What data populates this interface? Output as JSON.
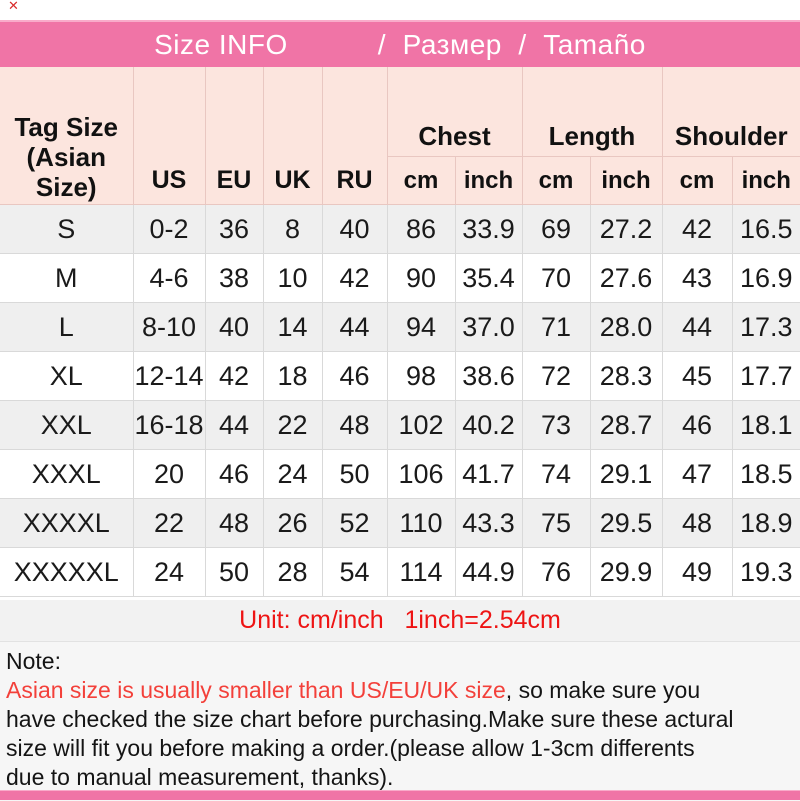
{
  "colors": {
    "accent_pink": "#f074a6",
    "accent_pink_light": "#f9abca",
    "table_header_bg": "#fce5de",
    "table_header_border": "#e9c7c1",
    "row_alt_bg": "#efefef",
    "row_border": "#d9d9d9",
    "unit_row_bg": "#f2f2f2",
    "note_bg": "#f6f6f6",
    "red_text": "#f3403a",
    "unit_red": "#ee1414",
    "title_text": "#ffffff",
    "body_text": "#1a1a1a"
  },
  "icons": {
    "red_cross": "✕"
  },
  "title_bar": {
    "left": "Size INFO",
    "right": "/  Размер  /  Tamaño"
  },
  "table": {
    "corner_header": "Tag Size\n(Asian\nSize)",
    "size_systems": [
      "US",
      "EU",
      "UK",
      "RU"
    ],
    "measure_groups": [
      "Chest",
      "Length",
      "Shoulder"
    ],
    "unit_headers": [
      "cm",
      "inch",
      "cm",
      "inch",
      "cm",
      "inch"
    ]
  },
  "chart_data": {
    "type": "table",
    "title": "Size INFO / Размер / Tamaño",
    "column_keys": [
      "tag",
      "us",
      "eu",
      "uk",
      "ru",
      "chest_cm",
      "chest_inch",
      "length_cm",
      "length_inch",
      "shoulder_cm",
      "shoulder_inch"
    ],
    "columns": [
      "Tag Size (Asian Size)",
      "US",
      "EU",
      "UK",
      "RU",
      "Chest cm",
      "Chest inch",
      "Length cm",
      "Length inch",
      "Shoulder cm",
      "Shoulder inch"
    ],
    "rows": [
      [
        "S",
        "0-2",
        "36",
        "8",
        "40",
        "86",
        "33.9",
        "69",
        "27.2",
        "42",
        "16.5"
      ],
      [
        "M",
        "4-6",
        "38",
        "10",
        "42",
        "90",
        "35.4",
        "70",
        "27.6",
        "43",
        "16.9"
      ],
      [
        "L",
        "8-10",
        "40",
        "14",
        "44",
        "94",
        "37.0",
        "71",
        "28.0",
        "44",
        "17.3"
      ],
      [
        "XL",
        "12-14",
        "42",
        "18",
        "46",
        "98",
        "38.6",
        "72",
        "28.3",
        "45",
        "17.7"
      ],
      [
        "XXL",
        "16-18",
        "44",
        "22",
        "48",
        "102",
        "40.2",
        "73",
        "28.7",
        "46",
        "18.1"
      ],
      [
        "XXXL",
        "20",
        "46",
        "24",
        "50",
        "106",
        "41.7",
        "74",
        "29.1",
        "47",
        "18.5"
      ],
      [
        "XXXXL",
        "22",
        "48",
        "26",
        "52",
        "110",
        "43.3",
        "75",
        "29.5",
        "48",
        "18.9"
      ],
      [
        "XXXXXL",
        "24",
        "50",
        "28",
        "54",
        "114",
        "44.9",
        "76",
        "29.9",
        "49",
        "19.3"
      ]
    ]
  },
  "unit_note": "Unit: cm/inch   1inch=2.54cm",
  "note": {
    "label": "Note:",
    "lines": [
      [
        {
          "t": "Asian size is usually smaller than US/EU/UK size",
          "red": true
        },
        {
          "t": ", so make sure you",
          "red": false
        }
      ],
      [
        {
          "t": "have checked the size chart before purchasing.Make sure these actural",
          "red": false
        }
      ],
      [
        {
          "t": "size will fit you before making a order.(please allow 1-3cm differents",
          "red": false
        }
      ],
      [
        {
          "t": "due to manual measurement, thanks).",
          "red": false
        }
      ]
    ]
  }
}
